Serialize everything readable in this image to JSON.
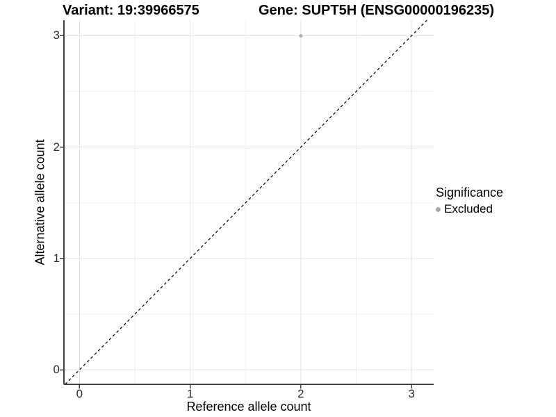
{
  "chart_data": {
    "type": "scatter",
    "titles": {
      "left": "Variant: 19:39966575",
      "right": "Gene: SUPT5H (ENSG00000196235)"
    },
    "xlabel": "Reference allele count",
    "ylabel": "Alternative allele count",
    "x_ticks": [
      0,
      1,
      2,
      3
    ],
    "y_ticks": [
      0,
      1,
      2,
      3
    ],
    "x_minor_ticks": [
      0.5,
      1.5,
      2.5
    ],
    "y_minor_ticks": [
      0.5,
      1.5,
      2.5
    ],
    "xlim": [
      -0.14,
      3.2
    ],
    "ylim": [
      -0.13,
      3.14
    ],
    "grid": true,
    "points": [
      {
        "x": 2,
        "y": 3,
        "series": "Excluded"
      }
    ],
    "reference_line": {
      "type": "identity",
      "style": "dashed",
      "color": "#000000"
    },
    "legend": {
      "title": "Significance",
      "position": "right",
      "entries": [
        {
          "label": "Excluded",
          "color": "#a8a8a8"
        }
      ]
    },
    "colors": {
      "Excluded": "#b3b3b3",
      "grid_major": "#e3e3e3",
      "grid_minor": "#f1f1f1",
      "axis_line": "#404040"
    }
  }
}
